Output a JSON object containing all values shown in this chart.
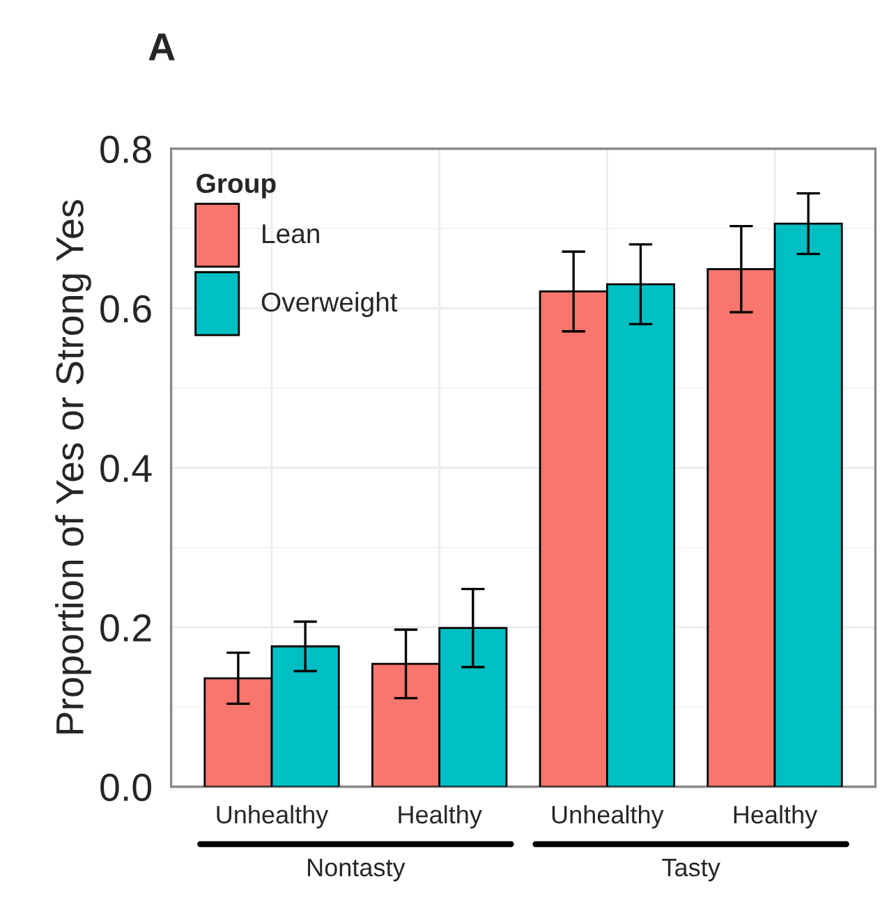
{
  "chart_data": {
    "type": "bar",
    "title": "A",
    "ylabel": "Proportion of Yes or Strong Yes",
    "legend_title": "Group",
    "categories": [
      "Unhealthy",
      "Healthy",
      "Unhealthy",
      "Healthy"
    ],
    "series": [
      {
        "name": "Lean",
        "color": "#f8766d",
        "values": [
          0.136,
          0.154,
          0.621,
          0.649
        ],
        "errors": [
          0.032,
          0.043,
          0.05,
          0.054
        ]
      },
      {
        "name": "Overweight",
        "color": "#00bfc4",
        "values": [
          0.176,
          0.199,
          0.63,
          0.706
        ],
        "errors": [
          0.031,
          0.049,
          0.05,
          0.038
        ]
      }
    ],
    "annotations": [
      "Nontasty",
      "Tasty"
    ],
    "ylim": [
      0,
      0.8
    ],
    "yticks": [
      {
        "value": 0,
        "label": "0.0"
      },
      0.2,
      0.4,
      0.6,
      0.8
    ],
    "grid": true,
    "legend": "top left"
  }
}
